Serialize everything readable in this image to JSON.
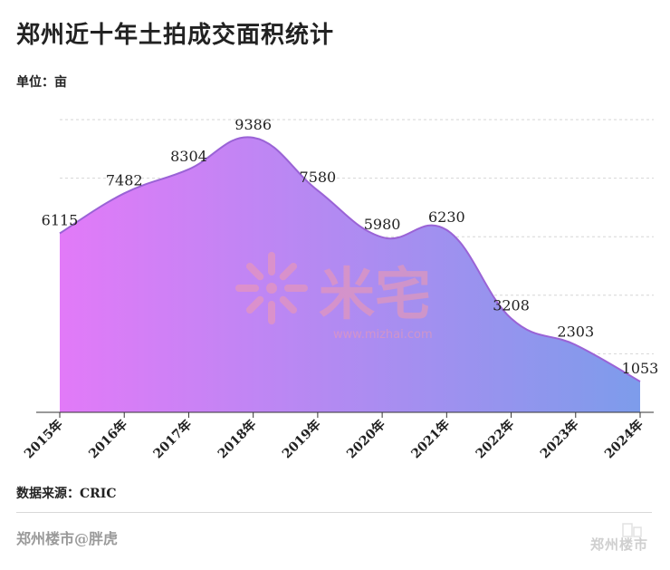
{
  "header": {
    "title": "郑州近十年土拍成交面积统计",
    "unit_label": "单位：亩"
  },
  "footer": {
    "source": "数据来源：CRIC",
    "author": "郑州楼市@胖虎",
    "brand": "郑州楼市"
  },
  "watermark": {
    "text": "米宅",
    "url": "www.mizhai.com"
  },
  "colors": {
    "gradient_start": "#e27af8",
    "gradient_end": "#7d9ceb",
    "line": "#9a63d6",
    "watermark": "#f3a0b0"
  },
  "chart_data": {
    "type": "area",
    "categories": [
      "2015年",
      "2016年",
      "2017年",
      "2018年",
      "2019年",
      "2020年",
      "2021年",
      "2022年",
      "2023年",
      "2024年"
    ],
    "series": [
      {
        "values": [
          6115,
          7482,
          8304,
          9386,
          7580,
          5980,
          6230,
          3208,
          2303,
          1053
        ]
      }
    ],
    "title": "郑州近十年土拍成交面积统计",
    "ylabel": "单位：亩",
    "ylim": [
      0,
      10000
    ],
    "grid": true,
    "data_labels": true,
    "legend": "none"
  }
}
